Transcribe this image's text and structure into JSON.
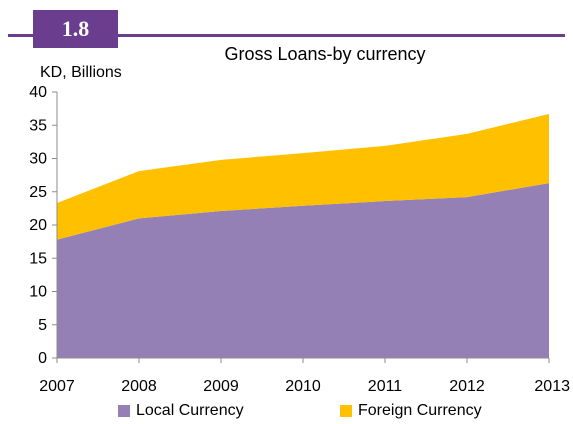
{
  "figure": {
    "number": "1.8"
  },
  "colors": {
    "accent": "#6a3d8f",
    "local": "#9580b5",
    "foreign": "#ffc000",
    "axis": "#8c8c8c"
  },
  "chart_data": {
    "type": "area",
    "stacked": true,
    "title": "Gross Loans-by currency",
    "ylabel": "KD, Billions",
    "xlabel": "",
    "x": [
      "2007",
      "2008",
      "2009",
      "2010",
      "2011",
      "2012",
      "2013"
    ],
    "ylim": [
      0,
      40
    ],
    "yticks": [
      0,
      5,
      10,
      15,
      20,
      25,
      30,
      35,
      40
    ],
    "grid": false,
    "legend_position": "bottom",
    "series": [
      {
        "name": "Local Currency",
        "values": [
          17.8,
          21.0,
          22.1,
          22.9,
          23.6,
          24.2,
          26.3
        ],
        "color": "#9580b5"
      },
      {
        "name": "Foreign Currency",
        "values": [
          5.5,
          7.1,
          7.7,
          7.9,
          8.3,
          9.5,
          10.4
        ],
        "color": "#ffc000"
      }
    ]
  }
}
